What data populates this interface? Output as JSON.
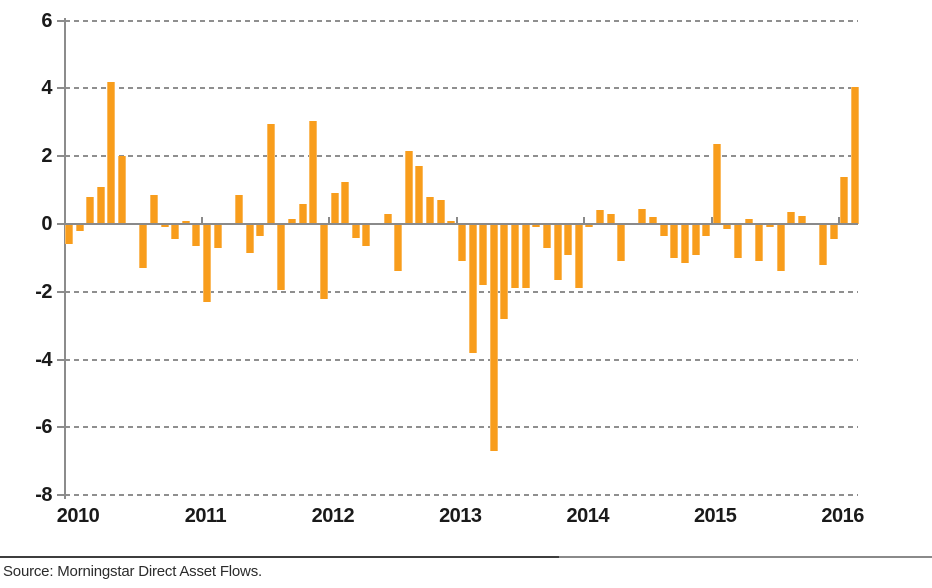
{
  "chart_data": {
    "type": "bar",
    "title": "",
    "xlabel": "",
    "ylabel": "",
    "ylim": [
      -8,
      6
    ],
    "y_ticks": [
      6,
      4,
      2,
      0,
      -2,
      -4,
      -6,
      -8
    ],
    "x_year_labels": [
      "2010",
      "2011",
      "2012",
      "2013",
      "2014",
      "2015",
      "2016"
    ],
    "grid": "horizontal-dashed",
    "legend": null,
    "bar_unit": "monthly net flow",
    "values": [
      -0.6,
      -0.2,
      0.8,
      1.1,
      4.2,
      2.0,
      0,
      -1.3,
      0.85,
      -0.1,
      -0.45,
      0.1,
      -0.65,
      -2.3,
      -0.7,
      0,
      0.85,
      -0.85,
      -0.35,
      2.95,
      -1.95,
      0.15,
      0.6,
      3.05,
      -2.2,
      0.9,
      1.25,
      -0.4,
      -0.65,
      0,
      0.3,
      -1.4,
      2.15,
      1.7,
      0.8,
      0.7,
      0.1,
      -1.1,
      -3.8,
      -1.8,
      -6.7,
      -2.8,
      -1.9,
      -1.9,
      -0.1,
      -0.7,
      -1.65,
      -0.9,
      -1.9,
      -0.1,
      0.4,
      0.3,
      -1.1,
      0,
      0.45,
      0.2,
      -0.35,
      -1.0,
      -1.15,
      -0.9,
      -0.35,
      2.35,
      -0.15,
      -1.0,
      0.15,
      -1.1,
      -0.1,
      -1.4,
      0.35,
      0.25,
      0,
      -1.2,
      -0.45,
      1.4,
      4.05
    ]
  },
  "colors": {
    "bar": "#F89D1C",
    "axis": "#8c8c8c",
    "grid": "#8f8f8f",
    "text": "#1a1a1a"
  },
  "footer": {
    "source_note": "Source: Morningstar Direct Asset Flows."
  }
}
